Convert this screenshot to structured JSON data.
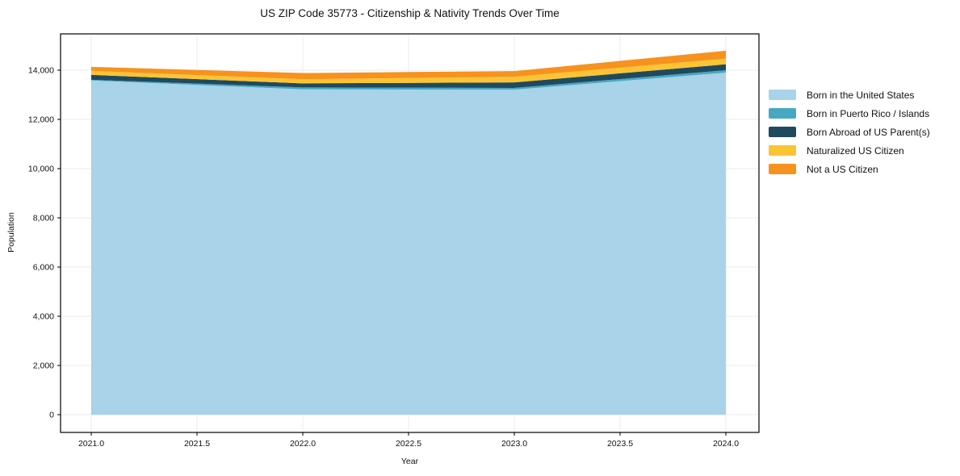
{
  "figure": {
    "title": "US ZIP Code 35773 - Citizenship & Nativity Trends Over Time",
    "xlabel": "Year",
    "ylabel": "Population",
    "background": "#ffffff"
  },
  "chart_data": {
    "type": "area",
    "stacked": true,
    "title": "US ZIP Code 35773 - Citizenship & Nativity Trends Over Time",
    "xlabel": "Year",
    "ylabel": "Population",
    "x": [
      2021,
      2022,
      2023,
      2024
    ],
    "series": [
      {
        "name": "Born in the United States",
        "color": "#a8d3e8",
        "values": [
          13580,
          13220,
          13210,
          13900
        ]
      },
      {
        "name": "Born in Puerto Rico / Islands",
        "color": "#47a8c4",
        "values": [
          30,
          80,
          70,
          100
        ]
      },
      {
        "name": "Born Abroad of US Parent(s)",
        "color": "#1f4a5e",
        "values": [
          200,
          165,
          225,
          240
        ]
      },
      {
        "name": "Naturalized US Citizen",
        "color": "#fcc433",
        "values": [
          165,
          165,
          230,
          230
        ]
      },
      {
        "name": "Not a US Citizen",
        "color": "#f6921e",
        "values": [
          160,
          255,
          230,
          320
        ]
      }
    ],
    "xtick_values": [
      2021.0,
      2021.5,
      2022.0,
      2022.5,
      2023.0,
      2023.5,
      2024.0
    ],
    "xtick_labels": [
      "2021.0",
      "2021.5",
      "2022.0",
      "2022.5",
      "2023.0",
      "2023.5",
      "2024.0"
    ],
    "ytick_values": [
      0,
      2000,
      4000,
      6000,
      8000,
      10000,
      12000,
      14000
    ],
    "ytick_labels": [
      "0",
      "2,000",
      "4,000",
      "6,000",
      "8,000",
      "10,000",
      "12,000",
      "14,000"
    ],
    "ylim": [
      0,
      14790
    ],
    "grid": true,
    "grid_color": "#ebebeb",
    "legend_position": "right-outside",
    "axis_color": "#000000"
  }
}
